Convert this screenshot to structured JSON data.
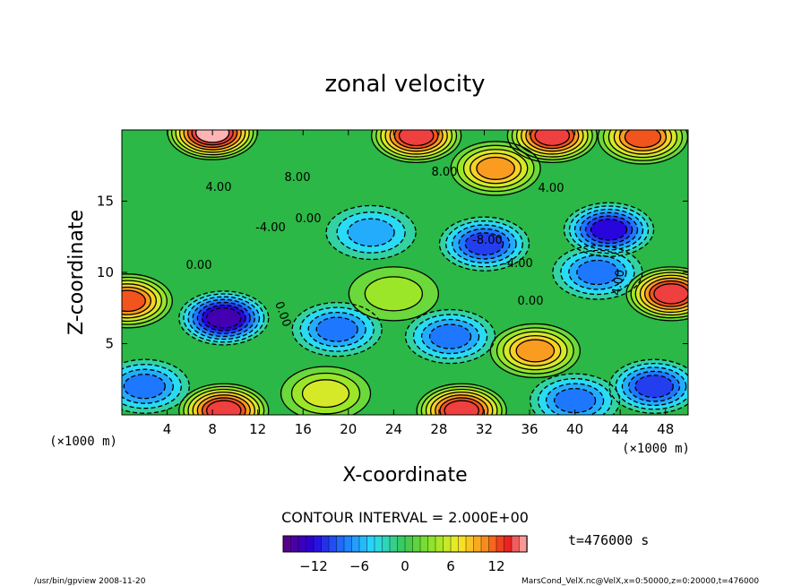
{
  "chart_data": {
    "type": "heatmap",
    "title": "zonal velocity",
    "xlabel": "X-coordinate",
    "ylabel": "Z-coordinate",
    "x_unit": "(×1000 m)",
    "y_unit": "(×1000 m)",
    "xlim": [
      0,
      50
    ],
    "ylim": [
      0,
      20
    ],
    "x_ticks": [
      "4",
      "8",
      "12",
      "16",
      "20",
      "24",
      "28",
      "32",
      "36",
      "40",
      "44",
      "48"
    ],
    "y_ticks": [
      "5",
      "10",
      "15"
    ],
    "contour_interval_text": "CONTOUR INTERVAL = 2.000E+00",
    "time_text": "t=476000 s",
    "colorbar": {
      "min": -16,
      "max": 16,
      "ticks": [
        "−12",
        "−6",
        "0",
        "6",
        "12"
      ]
    },
    "contour_labels": [
      "8.00",
      "8.00",
      "4.00",
      "4.00",
      "0.00",
      "-4.00",
      "0.00",
      "-8.00",
      "-4.00",
      "0.00",
      "0.00",
      "4.00"
    ],
    "features": [
      {
        "x": 9,
        "z": 6.8,
        "value": -14
      },
      {
        "x": 19,
        "z": 6,
        "value": -7
      },
      {
        "x": 29,
        "z": 5.5,
        "value": -8
      },
      {
        "x": 42,
        "z": 10,
        "value": -7
      },
      {
        "x": 32,
        "z": 12,
        "value": -10
      },
      {
        "x": 43,
        "z": 13,
        "value": -12
      },
      {
        "x": 22,
        "z": 12.8,
        "value": -6
      },
      {
        "x": 9,
        "z": 0.3,
        "value": 14
      },
      {
        "x": 30,
        "z": 0.3,
        "value": 14
      },
      {
        "x": 18,
        "z": 1.5,
        "value": 6
      },
      {
        "x": 36.5,
        "z": 4.5,
        "value": 10
      },
      {
        "x": 48.5,
        "z": 8.5,
        "value": 13
      },
      {
        "x": 0.5,
        "z": 8,
        "value": 12
      },
      {
        "x": 8,
        "z": 19.8,
        "value": 16
      },
      {
        "x": 26,
        "z": 19.6,
        "value": 14
      },
      {
        "x": 38,
        "z": 19.6,
        "value": 13
      },
      {
        "x": 46,
        "z": 19.5,
        "value": 12
      },
      {
        "x": 33,
        "z": 17.3,
        "value": 9
      },
      {
        "x": 24,
        "z": 8.5,
        "value": 3
      },
      {
        "x": 47,
        "z": 2,
        "value": -9
      },
      {
        "x": 40,
        "z": 1,
        "value": -7
      },
      {
        "x": 2,
        "z": 2,
        "value": -7
      }
    ]
  },
  "footer": {
    "left": "/usr/bin/gpview   2008-11-20",
    "right": "MarsCond_VelX.nc@VelX,x=0:50000,z=0:20000,t=476000"
  }
}
